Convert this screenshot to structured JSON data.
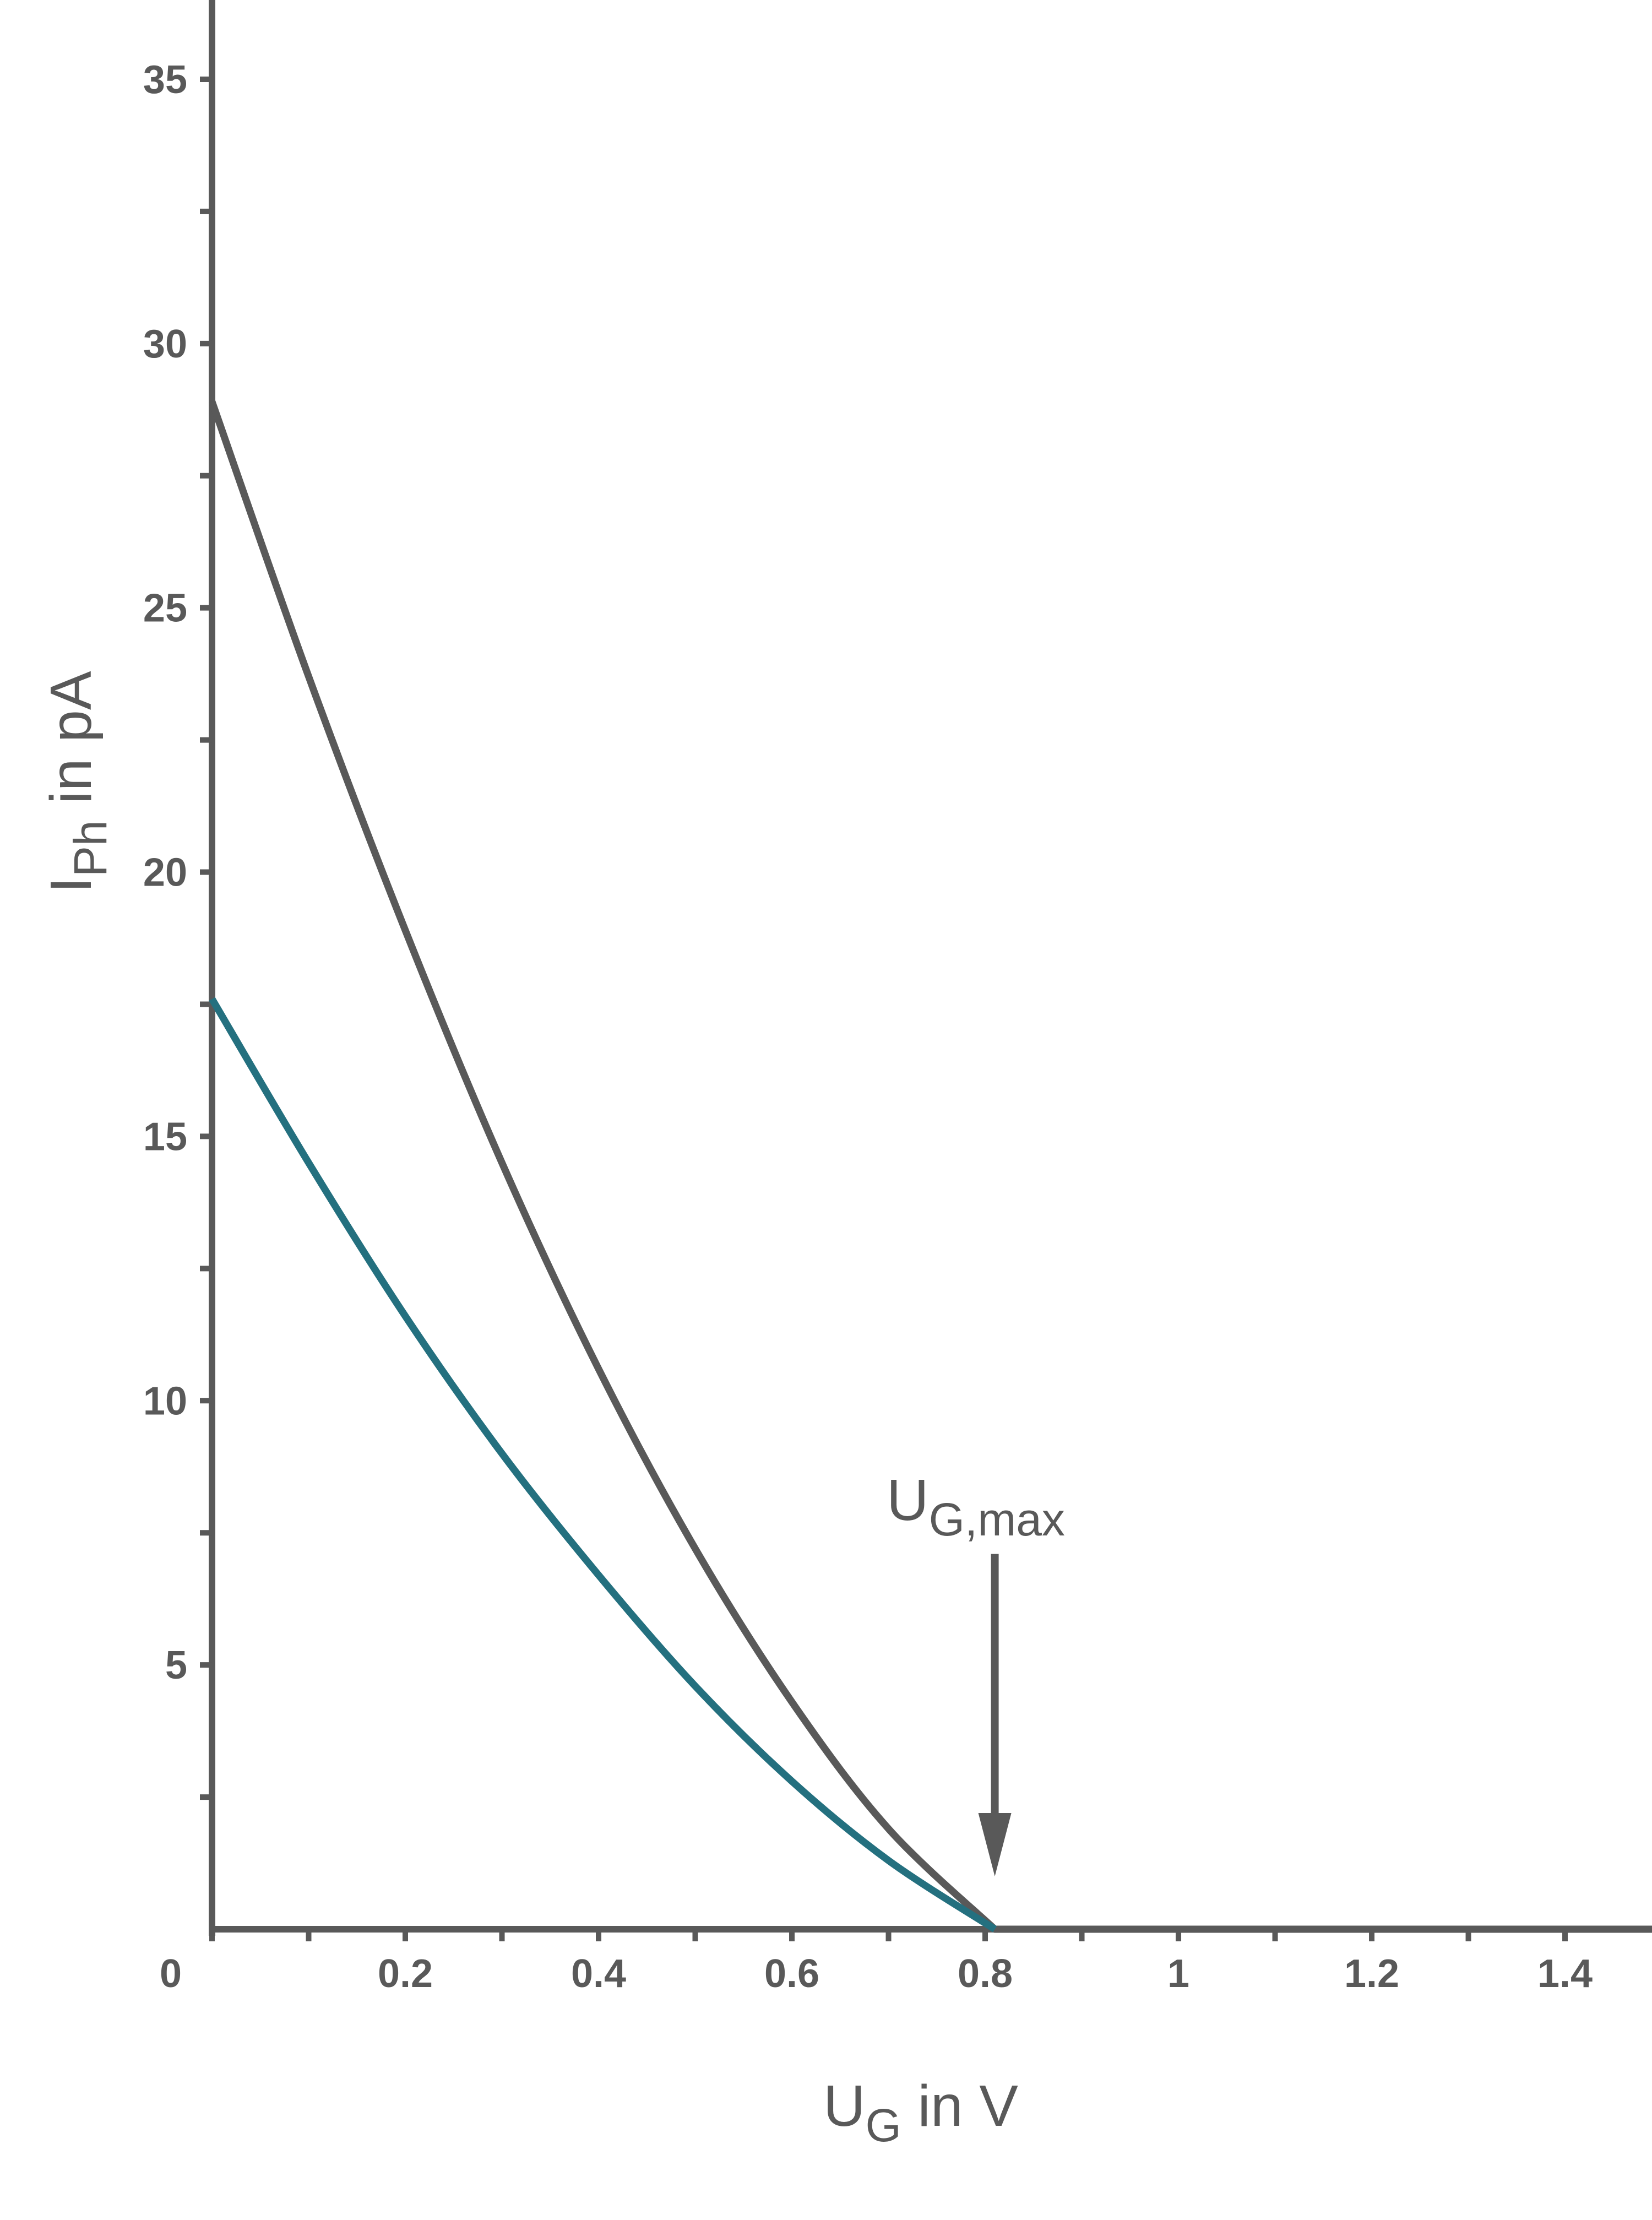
{
  "colors": {
    "axis": "#595959",
    "curve_gray": "#595959",
    "curve_teal": "#24707f"
  },
  "chart_data": {
    "type": "line",
    "xlabel": {
      "main": "U",
      "sub": "G",
      "rest": " in V"
    },
    "ylabel": {
      "main": "I",
      "sub": "Ph",
      "rest": " in pA"
    },
    "xlim": [
      0,
      1.49
    ],
    "ylim": [
      0,
      36.5
    ],
    "x_ticks": [
      {
        "value": 0.2,
        "label": "0.2"
      },
      {
        "value": 0.4,
        "label": "0.4"
      },
      {
        "value": 0.6,
        "label": "0.6"
      },
      {
        "value": 0.8,
        "label": "0.8"
      },
      {
        "value": 1.0,
        "label": "1"
      },
      {
        "value": 1.2,
        "label": "1.2"
      },
      {
        "value": 1.4,
        "label": "1.4"
      }
    ],
    "x_minor_ticks": [
      0.1,
      0.3,
      0.5,
      0.7,
      0.9,
      1.1,
      1.3
    ],
    "y_ticks": [
      {
        "value": 5,
        "label": "5"
      },
      {
        "value": 10,
        "label": "10"
      },
      {
        "value": 15,
        "label": "15"
      },
      {
        "value": 20,
        "label": "20"
      },
      {
        "value": 25,
        "label": "25"
      },
      {
        "value": 30,
        "label": "30"
      },
      {
        "value": 35,
        "label": "35"
      }
    ],
    "y_minor_ticks": [
      2.5,
      7.5,
      12.5,
      17.5,
      22.5,
      27.5,
      32.5
    ],
    "origin_label": "0",
    "series": [
      {
        "color": "#595959",
        "x": [
          0,
          0.1,
          0.2,
          0.3,
          0.4,
          0.5,
          0.6,
          0.7,
          0.81,
          1.49
        ],
        "y": [
          28.9,
          23.7,
          18.9,
          14.5,
          10.6,
          7.2,
          4.3,
          1.9,
          0,
          0
        ]
      },
      {
        "color": "#24707f",
        "x": [
          0,
          0.1,
          0.2,
          0.3,
          0.4,
          0.5,
          0.6,
          0.7,
          0.81
        ],
        "y": [
          17.6,
          14.5,
          11.6,
          9.0,
          6.7,
          4.6,
          2.8,
          1.3,
          0
        ]
      }
    ],
    "annotations": [
      {
        "label_main": "U",
        "label_sub": "G,max",
        "arrow_x": 0.81,
        "arrow_y_from": 7.1,
        "arrow_y_to": 1.0
      }
    ]
  }
}
